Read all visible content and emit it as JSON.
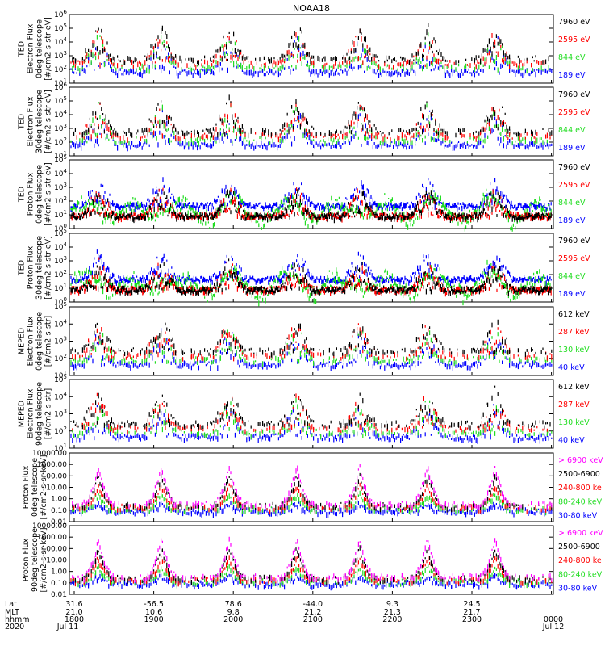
{
  "title": "NOAA18",
  "colors": {
    "black": "#000000",
    "red": "#ff0000",
    "green": "#22dd22",
    "blue": "#0000ff",
    "magenta": "#ff00ff"
  },
  "chart_data": [
    {
      "type": "scatter",
      "y_scale": "log",
      "ylim": [
        10,
        1000000
      ],
      "ylabel_lines": [
        "TED",
        "Electron Flux",
        "0deg telescope",
        "[#/cm2-s-str-eV]"
      ],
      "yticks": [
        {
          "v": 10,
          "label": "10",
          "exp": "1"
        },
        {
          "v": 100,
          "label": "10",
          "exp": "2"
        },
        {
          "v": 1000,
          "label": "10",
          "exp": "3"
        },
        {
          "v": 10000,
          "label": "10",
          "exp": "4"
        },
        {
          "v": 100000,
          "label": "10",
          "exp": "5"
        },
        {
          "v": 1000000,
          "label": "10",
          "exp": "6"
        }
      ],
      "legend": [
        {
          "label": "7960 eV",
          "color": "#000000"
        },
        {
          "label": "2595 eV",
          "color": "#ff0000"
        },
        {
          "label": "844 eV",
          "color": "#22dd22"
        },
        {
          "label": "189 eV",
          "color": "#0000ff"
        }
      ]
    },
    {
      "type": "scatter",
      "y_scale": "log",
      "ylim": [
        10,
        1000000
      ],
      "ylabel_lines": [
        "TED",
        "Electron Flux",
        "30deg telescope",
        "[#/cm2-s-str-eV]"
      ],
      "yticks": [
        {
          "v": 10,
          "label": "10",
          "exp": "1"
        },
        {
          "v": 100,
          "label": "10",
          "exp": "2"
        },
        {
          "v": 1000,
          "label": "10",
          "exp": "3"
        },
        {
          "v": 10000,
          "label": "10",
          "exp": "4"
        },
        {
          "v": 100000,
          "label": "10",
          "exp": "5"
        },
        {
          "v": 1000000,
          "label": "10",
          "exp": "6"
        }
      ],
      "legend": [
        {
          "label": "7960 eV",
          "color": "#000000"
        },
        {
          "label": "2595 eV",
          "color": "#ff0000"
        },
        {
          "label": "844 eV",
          "color": "#22dd22"
        },
        {
          "label": "189 eV",
          "color": "#0000ff"
        }
      ]
    },
    {
      "type": "scatter",
      "y_scale": "log",
      "ylim": [
        1,
        100000
      ],
      "ylabel_lines": [
        "TED",
        "Proton Flux",
        "0deg telescope",
        "[#/cm2-s-str-eV]"
      ],
      "yticks": [
        {
          "v": 1,
          "label": "10",
          "exp": "0"
        },
        {
          "v": 10,
          "label": "10",
          "exp": "1"
        },
        {
          "v": 100,
          "label": "10",
          "exp": "2"
        },
        {
          "v": 1000,
          "label": "10",
          "exp": "3"
        },
        {
          "v": 10000,
          "label": "10",
          "exp": "4"
        },
        {
          "v": 100000,
          "label": "10",
          "exp": "5"
        }
      ],
      "legend": [
        {
          "label": "7960 eV",
          "color": "#000000"
        },
        {
          "label": "2595 eV",
          "color": "#ff0000"
        },
        {
          "label": "844 eV",
          "color": "#22dd22"
        },
        {
          "label": "189 eV",
          "color": "#0000ff"
        }
      ]
    },
    {
      "type": "scatter",
      "y_scale": "log",
      "ylim": [
        1,
        100000
      ],
      "ylabel_lines": [
        "TED",
        "Proton Flux",
        "30deg telescope",
        "[#/cm2-s-str-eV]"
      ],
      "yticks": [
        {
          "v": 1,
          "label": "10",
          "exp": "0"
        },
        {
          "v": 10,
          "label": "10",
          "exp": "1"
        },
        {
          "v": 100,
          "label": "10",
          "exp": "2"
        },
        {
          "v": 1000,
          "label": "10",
          "exp": "3"
        },
        {
          "v": 10000,
          "label": "10",
          "exp": "4"
        },
        {
          "v": 100000,
          "label": "10",
          "exp": "5"
        }
      ],
      "legend": [
        {
          "label": "7960 eV",
          "color": "#000000"
        },
        {
          "label": "2595 eV",
          "color": "#ff0000"
        },
        {
          "label": "844 eV",
          "color": "#22dd22"
        },
        {
          "label": "189 eV",
          "color": "#0000ff"
        }
      ]
    },
    {
      "type": "scatter",
      "y_scale": "log",
      "ylim": [
        10,
        100000
      ],
      "ylabel_lines": [
        "MEPED",
        "Electron Flux",
        "0deg telescope",
        "[#/cm2-s-str]"
      ],
      "yticks": [
        {
          "v": 10,
          "label": "10",
          "exp": "1"
        },
        {
          "v": 100,
          "label": "10",
          "exp": "2"
        },
        {
          "v": 1000,
          "label": "10",
          "exp": "3"
        },
        {
          "v": 10000,
          "label": "10",
          "exp": "4"
        },
        {
          "v": 100000,
          "label": "10",
          "exp": "5"
        }
      ],
      "legend": [
        {
          "label": "612 keV",
          "color": "#000000"
        },
        {
          "label": "287 keV",
          "color": "#ff0000"
        },
        {
          "label": "130 keV",
          "color": "#22dd22"
        },
        {
          "label": "40 keV",
          "color": "#0000ff"
        }
      ]
    },
    {
      "type": "scatter",
      "y_scale": "log",
      "ylim": [
        10,
        100000
      ],
      "ylabel_lines": [
        "MEPED",
        "Electron Flux",
        "90deg telescope",
        "[#/cm2-s-str]"
      ],
      "yticks": [
        {
          "v": 10,
          "label": "10",
          "exp": "1"
        },
        {
          "v": 100,
          "label": "10",
          "exp": "2"
        },
        {
          "v": 1000,
          "label": "10",
          "exp": "3"
        },
        {
          "v": 10000,
          "label": "10",
          "exp": "4"
        },
        {
          "v": 100000,
          "label": "10",
          "exp": "5"
        }
      ],
      "legend": [
        {
          "label": "612 keV",
          "color": "#000000"
        },
        {
          "label": "287 keV",
          "color": "#ff0000"
        },
        {
          "label": "130 keV",
          "color": "#22dd22"
        },
        {
          "label": "40 keV",
          "color": "#0000ff"
        }
      ]
    },
    {
      "type": "scatter",
      "y_scale": "log",
      "ylim": [
        0.01,
        10000
      ],
      "ylabel_lines": [
        "Proton Flux",
        "0deg telescope",
        "[#/cm2-s-sr-keV]"
      ],
      "yticks": [
        {
          "v": 0.01,
          "label": "0.01"
        },
        {
          "v": 0.1,
          "label": "0.10"
        },
        {
          "v": 1,
          "label": "1.00"
        },
        {
          "v": 10,
          "label": "10.00"
        },
        {
          "v": 100,
          "label": "100.00"
        },
        {
          "v": 1000,
          "label": "1000.00"
        },
        {
          "v": 10000,
          "label": "10000.00"
        }
      ],
      "legend": [
        {
          "label": "> 6900 keV",
          "color": "#ff00ff"
        },
        {
          "label": "2500-6900",
          "color": "#000000"
        },
        {
          "label": "240-800 ke",
          "color": "#ff0000"
        },
        {
          "label": "80-240 keV",
          "color": "#22dd22"
        },
        {
          "label": "30-80 keV",
          "color": "#0000ff"
        }
      ]
    },
    {
      "type": "scatter",
      "y_scale": "log",
      "ylim": [
        0.01,
        10000
      ],
      "ylabel_lines": [
        "Proton Flux",
        "90deg telescope",
        "[#/cm2-s-sr-keV]"
      ],
      "yticks": [
        {
          "v": 0.01,
          "label": "0.01"
        },
        {
          "v": 0.1,
          "label": "0.10"
        },
        {
          "v": 1,
          "label": "1.00"
        },
        {
          "v": 10,
          "label": "10.00"
        },
        {
          "v": 100,
          "label": "100.00"
        },
        {
          "v": 1000,
          "label": "1000.00"
        },
        {
          "v": 10000,
          "label": "10000.00"
        }
      ],
      "legend": [
        {
          "label": "> 6900 keV",
          "color": "#ff00ff"
        },
        {
          "label": "2500-6900",
          "color": "#000000"
        },
        {
          "label": "240-800 ke",
          "color": "#ff0000"
        },
        {
          "label": "80-240 keV",
          "color": "#22dd22"
        },
        {
          "label": "30-80 keV",
          "color": "#0000ff"
        }
      ]
    }
  ],
  "time_axis": {
    "row_labels": [
      "Lat",
      "MLT",
      "hhmm",
      "2020"
    ],
    "start_label": "Jul 11",
    "end_label": "Jul 12",
    "ticks": [
      {
        "lat": "31.6",
        "mlt": "21.0",
        "hhmm": "1800"
      },
      {
        "lat": "-56.5",
        "mlt": "10.6",
        "hhmm": "1900"
      },
      {
        "lat": "78.6",
        "mlt": "9.8",
        "hhmm": "2000"
      },
      {
        "lat": "-44.0",
        "mlt": "21.2",
        "hhmm": "2100"
      },
      {
        "lat": "9.3",
        "mlt": "21.3",
        "hhmm": "2200"
      },
      {
        "lat": "24.5",
        "mlt": "21.7",
        "hhmm": "2300"
      },
      {
        "lat": "",
        "mlt": "",
        "hhmm": "0000"
      }
    ]
  }
}
